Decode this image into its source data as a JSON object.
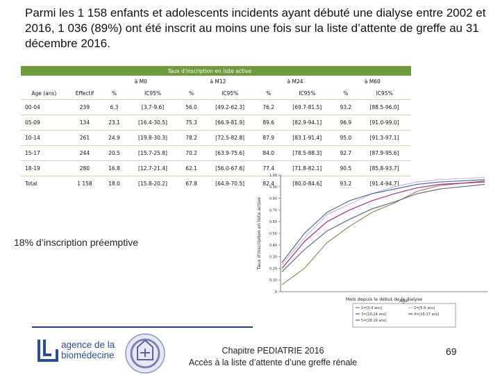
{
  "title": "Parmi les 1 158 enfants et adolescents incidents ayant débuté une dialyse entre 2002 et 2016, 1 036 (89%) ont été inscrit au moins une fois sur la liste d’attente de greffe au 31 décembre 2016.",
  "table": {
    "banner": "Taux d'inscription en liste active",
    "month_groups": [
      "à M0",
      "à M12",
      "à M24",
      "à M60"
    ],
    "columns": [
      "Age (ans)",
      "Effectif",
      "%",
      "IC95%",
      "%",
      "IC95%",
      "%",
      "IC95%",
      "%",
      "IC95%"
    ],
    "rows": [
      [
        "00-04",
        "239",
        "6.3",
        "[3.7-9.6]",
        "56.0",
        "[49.2-62.3]",
        "76.2",
        "[69.7-81.5]",
        "93.2",
        "[88.5-96.0]"
      ],
      [
        "05-09",
        "134",
        "23.1",
        "[16.4-30.5]",
        "75.3",
        "[66.9-81.9]",
        "89.6",
        "[82.9-94.1]",
        "96.9",
        "[91.0-99.0]"
      ],
      [
        "10-14",
        "261",
        "24.9",
        "[19.8-30.3]",
        "78.2",
        "[72.5-82.8]",
        "87.9",
        "[83.1-91.4]",
        "95.0",
        "[91.3-97.1]"
      ],
      [
        "15-17",
        "244",
        "20.5",
        "[15.7-25.8]",
        "70.2",
        "[63.9-75.6]",
        "84.0",
        "[78.5-88.3]",
        "92.7",
        "[87.9-95.6]"
      ],
      [
        "18-19",
        "280",
        "16.8",
        "[12.7-21.4]",
        "62.1",
        "[56.0-67.6]",
        "77.4",
        "[71.8-82.1]",
        "90.5",
        "[85.8-93.7]"
      ],
      [
        "Total",
        "1 158",
        "18.0",
        "[15.8-20.2]",
        "67.8",
        "[64.9-70.5]",
        "82.4",
        "[80.0-84.6]",
        "93.2",
        "[91.4-94.7]"
      ]
    ]
  },
  "chart_data": {
    "type": "line",
    "ylabel": "Taux d'inscription en liste active",
    "xlabel": "Mois depuis le début de la dialyse",
    "ylim": [
      0,
      1
    ],
    "yticks": [
      "0",
      "0.10",
      "0.20",
      "0.30",
      "0.40",
      "0.50",
      "0.60",
      "0.70",
      "0.80",
      "0.90",
      "1.00"
    ],
    "legend_title": "Age:",
    "series": [
      {
        "name": "1=[0-4 ans]",
        "color": "#9a7a4a",
        "y": [
          0.06,
          0.2,
          0.42,
          0.56,
          0.68,
          0.76,
          0.86,
          0.91,
          0.93,
          0.95
        ]
      },
      {
        "name": "2=[5-9 ans]",
        "color": "#c8b0e0",
        "y": [
          0.23,
          0.46,
          0.66,
          0.75,
          0.84,
          0.9,
          0.94,
          0.96,
          0.97,
          0.98
        ]
      },
      {
        "name": "3=[10-14 ans]",
        "color": "#3f5fa8",
        "y": [
          0.25,
          0.5,
          0.68,
          0.78,
          0.84,
          0.88,
          0.92,
          0.94,
          0.95,
          0.96
        ]
      },
      {
        "name": "4=[15-17 ans]",
        "color": "#a01888",
        "y": [
          0.2,
          0.43,
          0.6,
          0.7,
          0.78,
          0.84,
          0.89,
          0.92,
          0.93,
          0.94
        ]
      },
      {
        "name": "5=[18-19 ans]",
        "color": "#5a5f78",
        "y": [
          0.17,
          0.36,
          0.52,
          0.62,
          0.71,
          0.77,
          0.84,
          0.88,
          0.9,
          0.92
        ]
      }
    ]
  },
  "annotation": {
    "preemptive": "18% d’inscription préemptive"
  },
  "footer": {
    "line1": "Chapitre PEDIATRIE 2016",
    "line2": "Accès à la liste d’attente d’une greffe rénale",
    "page": "69"
  },
  "logo": {
    "line1": "agence de la",
    "line2": "biomédecine",
    "brand_color": "#2a4d9a"
  }
}
